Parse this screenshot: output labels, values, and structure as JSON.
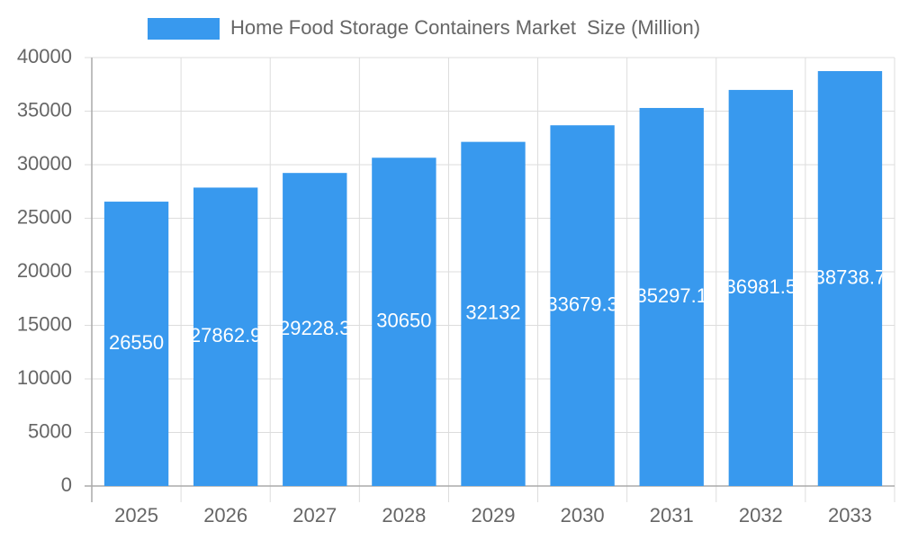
{
  "chart_data": {
    "type": "bar",
    "categories": [
      "2025",
      "2026",
      "2027",
      "2028",
      "2029",
      "2030",
      "2031",
      "2032",
      "2033"
    ],
    "series": [
      {
        "name": "Home Food Storage Containers Market  Size (Million)",
        "color": "#3899ee",
        "values": [
          26550,
          27862.9,
          29228.3,
          30650,
          32132,
          33679.3,
          35297.1,
          36981.5,
          38738.7
        ]
      }
    ],
    "ylim": [
      0,
      40000
    ],
    "yticks": [
      0,
      5000,
      10000,
      15000,
      20000,
      25000,
      30000,
      35000,
      40000
    ],
    "grid": true,
    "legend": "top"
  }
}
